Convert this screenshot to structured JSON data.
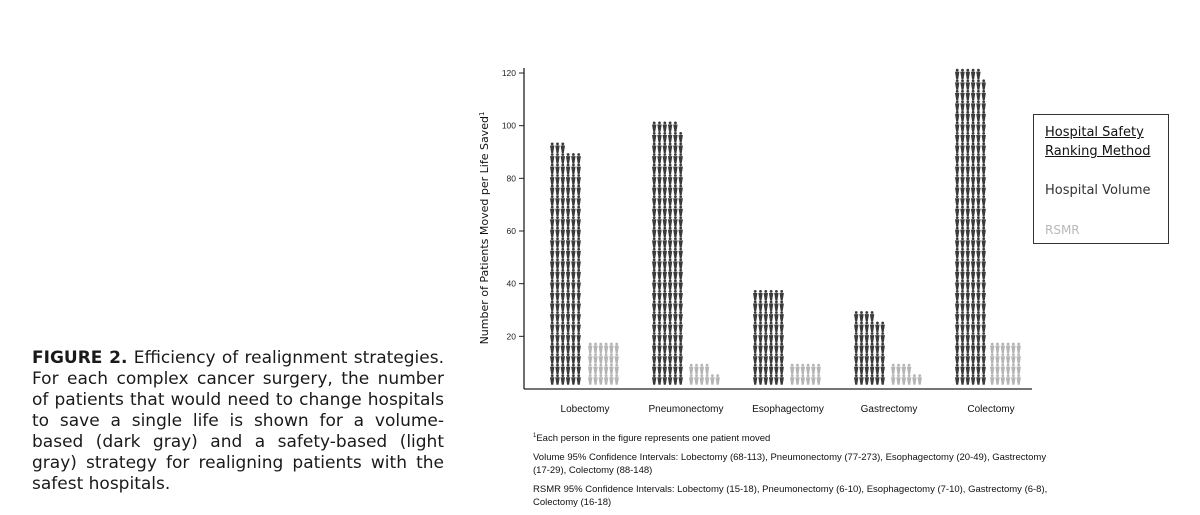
{
  "caption": {
    "label": "FIGURE 2.",
    "text": "Efficiency of realignment strategies. For each complex cancer surgery, the number of patients that would need to change hospitals to save a single life is shown for a volume-based (dark gray) and a safety-based (light gray) strategy for realigning patients with the safest hospitals."
  },
  "legend": {
    "title_line1": "Hospital Safety",
    "title_line2": "Ranking Method",
    "volume_label": "Hospital Volume",
    "rsmr_label": "RSMR"
  },
  "footnotes": {
    "each_person": "Each person in the figure represents one patient moved",
    "volume_ci": "Volume 95% Confidence Intervals: Lobectomy (68-113), Pneumonectomy (77-273), Esophagectomy (20-49), Gastrectomy (17-29), Colectomy (88-148)",
    "rsmr_ci": "RSMR 95% Confidence Intervals: Lobectomy (15-18), Pneumonectomy (6-10), Esophagectomy (7-10), Gastrectomy (6-8), Colectomy (16-18)"
  },
  "colors": {
    "volume": "#3a3a3a",
    "rsmr": "#b5b5b5"
  },
  "chart_data": {
    "type": "bar",
    "ylabel": "Number of Patients Moved per Life Saved",
    "ylabel_superscript": "1",
    "ylim": [
      0,
      120
    ],
    "yticks": [
      20,
      40,
      60,
      80,
      100,
      120
    ],
    "categories": [
      "Lobectomy",
      "Pneumonectomy",
      "Esophagectomy",
      "Gastrectomy",
      "Colectomy"
    ],
    "series": [
      {
        "name": "Hospital Volume",
        "values": [
          90,
          100,
          37,
          27,
          120
        ]
      },
      {
        "name": "RSMR",
        "values": [
          17,
          7,
          8,
          7,
          17
        ]
      }
    ]
  }
}
